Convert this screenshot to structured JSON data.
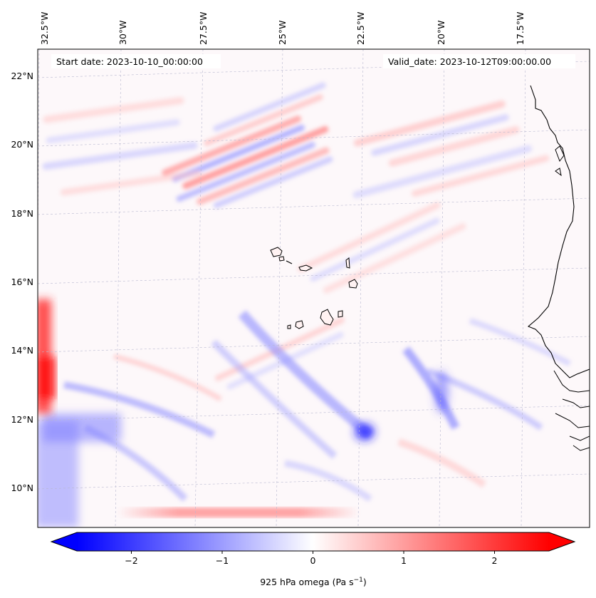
{
  "map": {
    "start_label": "Start date: 2023-10-10_00:00:00",
    "valid_label": "Valid_date: 2023-10-12T09:00:00.00",
    "lon_ticks": [
      "32.5°W",
      "30°W",
      "27.5°W",
      "25°W",
      "22.5°W",
      "20°W",
      "17.5°W"
    ],
    "lat_ticks": [
      "22°N",
      "20°N",
      "18°N",
      "16°N",
      "14°N",
      "12°N",
      "10°N"
    ],
    "extent": {
      "lon_min": -32.6,
      "lon_max": -15.8,
      "lat_min": 8.8,
      "lat_max": 22.8
    }
  },
  "colorbar": {
    "label_main": "925 hPa omega (Pa s",
    "label_sup": "−1",
    "label_close": ")",
    "ticks": [
      "−2",
      "−1",
      "0",
      "1",
      "2"
    ],
    "tick_values": [
      -2,
      -1,
      0,
      1,
      2
    ],
    "vmin": -2.6,
    "vmax": 2.6,
    "colormap": "bwr",
    "colors": {
      "negative": "#0000ff",
      "zero": "#ffffff",
      "positive": "#ff0000"
    },
    "extend": "both"
  }
}
